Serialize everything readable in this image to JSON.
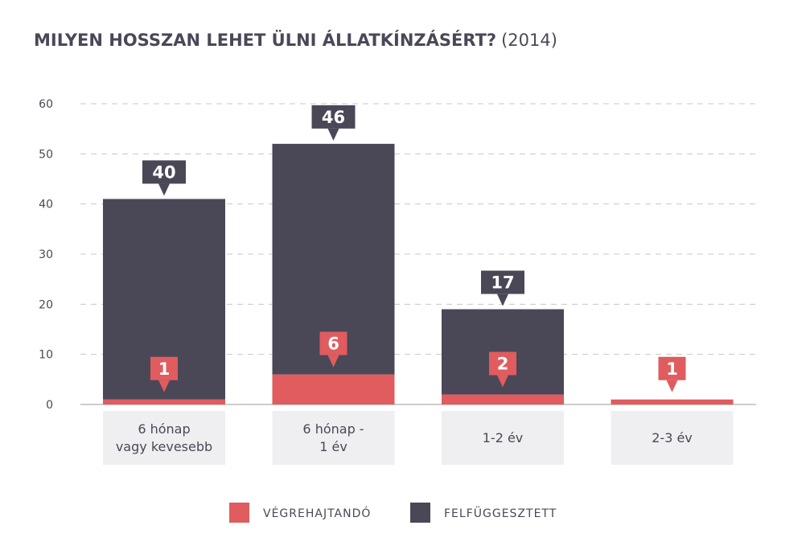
{
  "chart_data": {
    "type": "bar",
    "stacked": true,
    "title": "MILYEN HOSSZAN LEHET ÜLNI ÁLLATKÍNZÁSÉRT?",
    "subtitle": "(2014)",
    "categories": [
      [
        "6 hónap",
        "vagy kevesebb"
      ],
      [
        "6 hónap -",
        "1 év"
      ],
      [
        "1-2 év"
      ],
      [
        "2-3 év"
      ]
    ],
    "series": [
      {
        "name": "VÉGREHAJTANDÓ",
        "values": [
          1,
          6,
          2,
          1
        ],
        "color": "#e05c5e"
      },
      {
        "name": "FELFÜGGESZTETT",
        "values": [
          40,
          46,
          17,
          0
        ],
        "color": "#4a4857"
      }
    ],
    "ylim": [
      0,
      60
    ],
    "yticks": [
      0,
      10,
      20,
      30,
      40,
      50,
      60
    ],
    "grid": true,
    "legend": "bottom-center"
  }
}
